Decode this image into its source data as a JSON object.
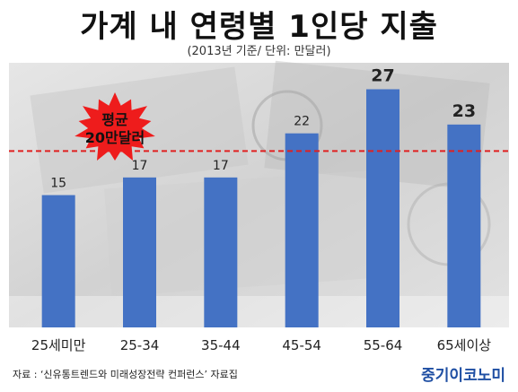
{
  "title": "가계 내 연령별 1인당 지출",
  "subtitle": "(2013년 기준/ 단위: 만달러)",
  "source": "자료 : ‘신유통트렌드와 미래성장전략 컨퍼런스’ 자료집",
  "brand": "중기이코노미",
  "colors": {
    "bar": "#4472c4",
    "avg_line": "#e02020",
    "starburst": "#ee1c1c"
  },
  "chart_data": {
    "type": "bar",
    "categories": [
      "25세미만",
      "25-34",
      "35-44",
      "45-54",
      "55-64",
      "65세이상"
    ],
    "values": [
      15,
      17,
      17,
      22,
      27,
      23
    ],
    "highlighted": [
      false,
      false,
      false,
      false,
      true,
      true
    ],
    "ylim": [
      0,
      30
    ],
    "average": {
      "value": 20,
      "label": "평균\n20만달러"
    },
    "grid": false,
    "legend": "none"
  }
}
